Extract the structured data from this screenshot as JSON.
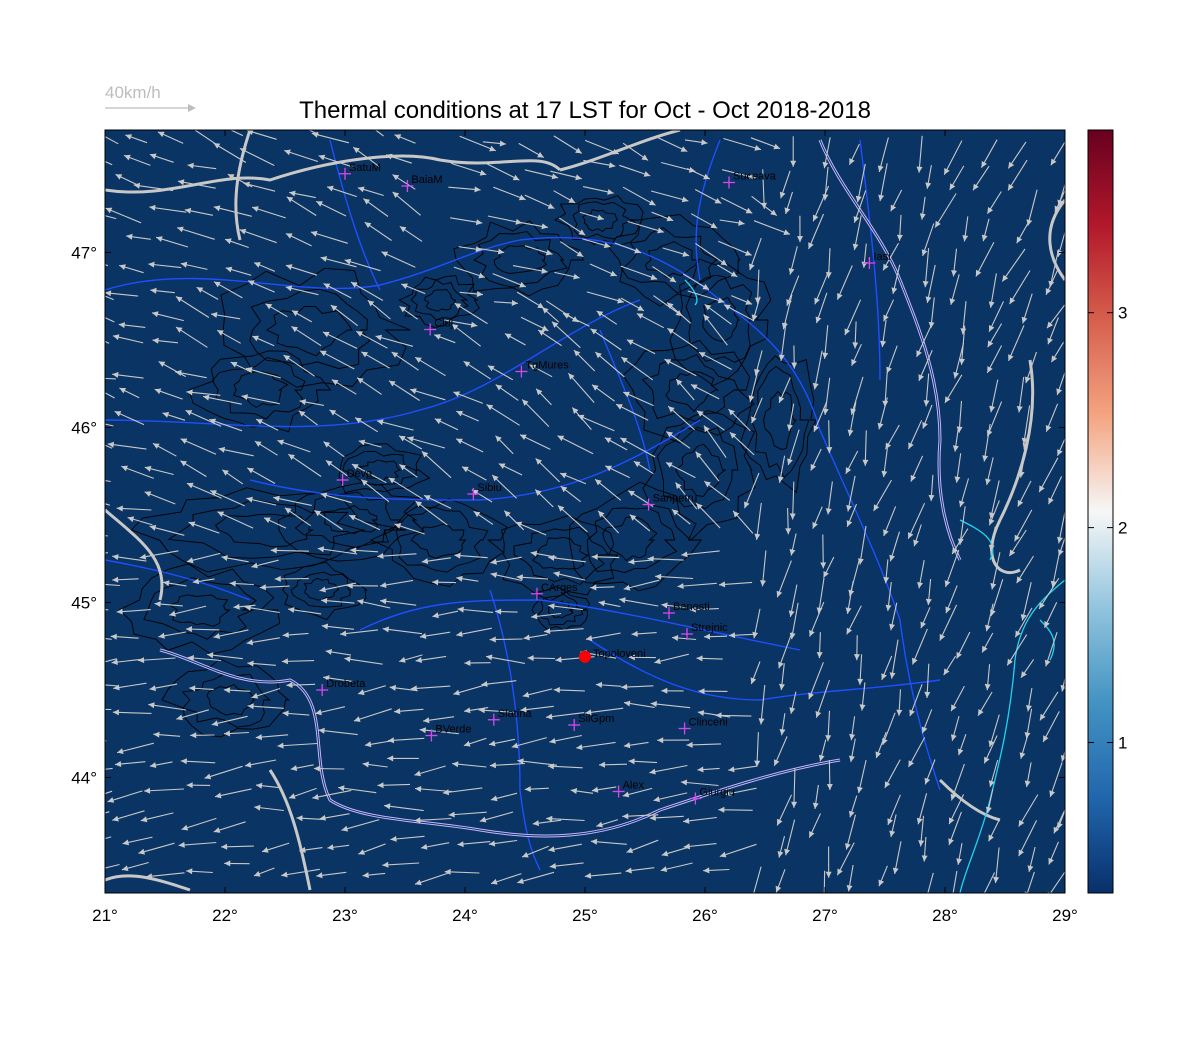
{
  "title": "Thermal conditions at 17 LST for Oct - Oct  2018-2018",
  "wind_legend": {
    "label": "40km/h",
    "speed_kmh": 40
  },
  "map": {
    "lon_range": [
      21,
      29
    ],
    "lat_range": [
      43.34,
      47.7
    ],
    "lon_ticks": [
      21,
      22,
      23,
      24,
      25,
      26,
      27,
      28,
      29
    ],
    "lat_ticks": [
      44,
      45,
      46,
      47
    ],
    "background_color": "#0a3463"
  },
  "colorbar": {
    "range": [
      0.3,
      3.85
    ],
    "ticks": [
      1,
      2,
      3
    ],
    "colors": [
      "#08306b",
      "#2166ac",
      "#4393c3",
      "#92c5de",
      "#f7f7f7",
      "#f4a582",
      "#d6604d",
      "#b2182b",
      "#67001f"
    ]
  },
  "stations": [
    {
      "name": "SatuM",
      "lon": 23.0,
      "lat": 47.45
    },
    {
      "name": "BaiaM",
      "lon": 23.52,
      "lat": 47.38
    },
    {
      "name": "Suceava",
      "lon": 26.2,
      "lat": 47.4
    },
    {
      "name": "Iasi",
      "lon": 27.37,
      "lat": 46.94
    },
    {
      "name": "Cluj",
      "lon": 23.71,
      "lat": 46.56
    },
    {
      "name": "TgMures",
      "lon": 24.47,
      "lat": 46.32
    },
    {
      "name": "Deva",
      "lon": 22.98,
      "lat": 45.7
    },
    {
      "name": "Sibiu",
      "lon": 24.07,
      "lat": 45.62
    },
    {
      "name": "Sanpetru",
      "lon": 25.53,
      "lat": 45.56
    },
    {
      "name": "CArges",
      "lon": 24.6,
      "lat": 45.05
    },
    {
      "name": "Banesti",
      "lon": 25.7,
      "lat": 44.94
    },
    {
      "name": "Strejnic",
      "lon": 25.85,
      "lat": 44.82
    },
    {
      "name": "Drobeta",
      "lon": 22.81,
      "lat": 44.5
    },
    {
      "name": "Slatina",
      "lon": 24.24,
      "lat": 44.33
    },
    {
      "name": "SilGpm",
      "lon": 24.91,
      "lat": 44.3
    },
    {
      "name": "Clinceni",
      "lon": 25.83,
      "lat": 44.28
    },
    {
      "name": "BVerde",
      "lon": 23.72,
      "lat": 44.24
    },
    {
      "name": "Alex",
      "lon": 25.28,
      "lat": 43.92
    },
    {
      "name": "Giurgiu",
      "lon": 25.92,
      "lat": 43.88
    }
  ],
  "highlight_station": {
    "name": "Topoloveni",
    "lon": 25.0,
    "lat": 44.69,
    "color": "#ff0000"
  }
}
